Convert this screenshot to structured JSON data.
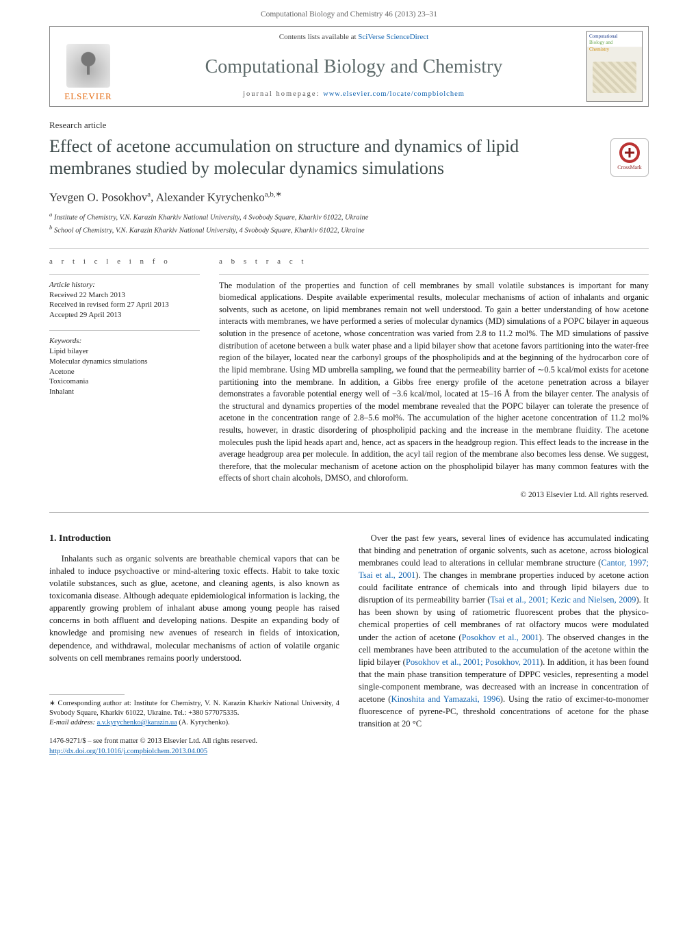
{
  "running_head": "Computational Biology and Chemistry 46 (2013) 23–31",
  "masthead": {
    "contents_prefix": "Contents lists available at ",
    "contents_link": "SciVerse ScienceDirect",
    "journal": "Computational Biology and Chemistry",
    "homepage_prefix": "journal homepage: ",
    "homepage_link": "www.elsevier.com/locate/compbiolchem",
    "publisher": "ELSEVIER",
    "cover_line1": "Computational",
    "cover_line2": "Biology and",
    "cover_line3": "Chemistry"
  },
  "article": {
    "type": "Research article",
    "title": "Effect of acetone accumulation on structure and dynamics of lipid membranes studied by molecular dynamics simulations",
    "authors_html": "Yevgen O. Posokhov",
    "author1": "Yevgen O. Posokhov",
    "author1_sup": "a",
    "author2": "Alexander Kyrychenko",
    "author2_sup": "a,b,∗",
    "affiliations": {
      "a": "Institute of Chemistry, V.N. Karazin Kharkiv National University, 4 Svobody Square, Kharkiv 61022, Ukraine",
      "b": "School of Chemistry, V.N. Karazin Kharkiv National University, 4 Svobody Square, Kharkiv 61022, Ukraine"
    },
    "crossmark": "CrossMark"
  },
  "info": {
    "heading": "a r t i c l e   i n f o",
    "history_label": "Article history:",
    "history": [
      "Received 22 March 2013",
      "Received in revised form 27 April 2013",
      "Accepted 29 April 2013"
    ],
    "keywords_label": "Keywords:",
    "keywords": [
      "Lipid bilayer",
      "Molecular dynamics simulations",
      "Acetone",
      "Toxicomania",
      "Inhalant"
    ]
  },
  "abstract": {
    "heading": "a b s t r a c t",
    "text": "The modulation of the properties and function of cell membranes by small volatile substances is important for many biomedical applications. Despite available experimental results, molecular mechanisms of action of inhalants and organic solvents, such as acetone, on lipid membranes remain not well understood. To gain a better understanding of how acetone interacts with membranes, we have performed a series of molecular dynamics (MD) simulations of a POPC bilayer in aqueous solution in the presence of acetone, whose concentration was varied from 2.8 to 11.2 mol%. The MD simulations of passive distribution of acetone between a bulk water phase and a lipid bilayer show that acetone favors partitioning into the water-free region of the bilayer, located near the carbonyl groups of the phospholipids and at the beginning of the hydrocarbon core of the lipid membrane. Using MD umbrella sampling, we found that the permeability barrier of ∼0.5 kcal/mol exists for acetone partitioning into the membrane. In addition, a Gibbs free energy profile of the acetone penetration across a bilayer demonstrates a favorable potential energy well of −3.6 kcal/mol, located at 15–16 Å from the bilayer center. The analysis of the structural and dynamics properties of the model membrane revealed that the POPC bilayer can tolerate the presence of acetone in the concentration range of 2.8–5.6 mol%. The accumulation of the higher acetone concentration of 11.2 mol% results, however, in drastic disordering of phospholipid packing and the increase in the membrane fluidity. The acetone molecules push the lipid heads apart and, hence, act as spacers in the headgroup region. This effect leads to the increase in the average headgroup area per molecule. In addition, the acyl tail region of the membrane also becomes less dense. We suggest, therefore, that the molecular mechanism of acetone action on the phospholipid bilayer has many common features with the effects of short chain alcohols, DMSO, and chloroform.",
    "copyright": "© 2013 Elsevier Ltd. All rights reserved."
  },
  "intro": {
    "heading": "1. Introduction",
    "p1": "Inhalants such as organic solvents are breathable chemical vapors that can be inhaled to induce psychoactive or mind-altering toxic effects. Habit to take toxic volatile substances, such as glue, acetone, and cleaning agents, is also known as toxicomania disease. Although adequate epidemiological information is lacking, the apparently growing problem of inhalant abuse among young people has raised concerns in both affluent and developing nations. Despite an expanding body of knowledge and promising new avenues of research in fields of intoxication, dependence, and withdrawal, molecular mechanisms of action of volatile organic solvents on cell membranes remains poorly understood.",
    "p2a": "Over the past few years, several lines of evidence has accumulated indicating that binding and penetration of organic solvents, such as acetone, across biological membranes could lead to alterations in cellular membrane structure (",
    "c1": "Cantor, 1997; Tsai et al., 2001",
    "p2b": "). The changes in membrane properties induced by acetone action could facilitate entrance of chemicals into and through lipid bilayers due to disruption of its permeability barrier (",
    "c2": "Tsai et al., 2001; Kezic and Nielsen, 2009",
    "p2c": "). It has been shown by using of ratiometric fluorescent probes that the physico-chemical properties of cell membranes of rat olfactory mucos were modulated under the action of acetone (",
    "c3": "Posokhov et al., 2001",
    "p2d": "). The observed changes in the cell membranes have been attributed to the accumulation of the acetone within the lipid bilayer (",
    "c4": "Posokhov et al., 2001; Posokhov, 2011",
    "p2e": "). In addition, it has been found that the main phase transition temperature of DPPC vesicles, representing a model single-component membrane, was decreased with an increase in concentration of acetone (",
    "c5": "Kinoshita and Yamazaki, 1996",
    "p2f": "). Using the ratio of excimer-to-monomer fluorescence of pyrene-PC, threshold concentrations of acetone for the phase transition at 20 °C"
  },
  "footnote": {
    "star": "∗ Corresponding author at: Institute for Chemistry, V. N. Karazin Kharkiv National University, 4 Svobody Square, Kharkiv 61022, Ukraine. Tel.: +380 577075335.",
    "email_label": "E-mail address: ",
    "email": "a.v.kyrychenko@karazin.ua",
    "email_tail": " (A. Kyrychenko)."
  },
  "footer": {
    "line1": "1476-9271/$ – see front matter © 2013 Elsevier Ltd. All rights reserved.",
    "doi": "http://dx.doi.org/10.1016/j.compbiolchem.2013.04.005"
  },
  "colors": {
    "link": "#1063b0",
    "publisher": "#e46a10",
    "heading_gray": "#5d6a6a",
    "rule": "#bbbbbb"
  }
}
